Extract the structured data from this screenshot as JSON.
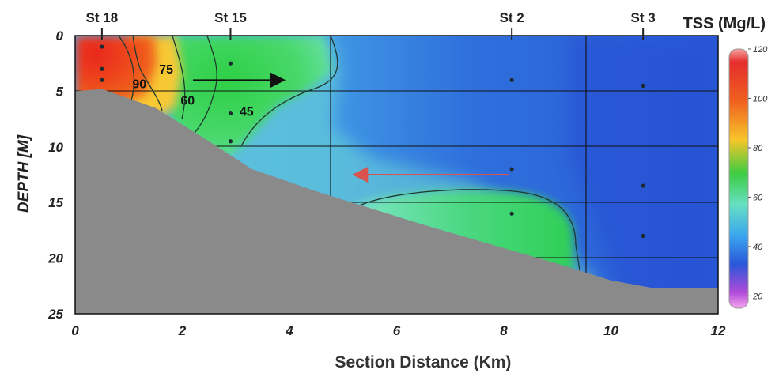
{
  "chart_data": {
    "type": "contour",
    "title": "TSS (Mg/L)",
    "xlabel": "Section Distance (Km)",
    "ylabel": "DEPTH [M]",
    "xlim": [
      0,
      12
    ],
    "ylim": [
      25,
      0
    ],
    "xticks": [
      "0",
      "2",
      "4",
      "6",
      "8",
      "10",
      "12"
    ],
    "xtick_values": [
      0,
      2,
      4,
      6,
      8,
      10,
      12
    ],
    "yticks": [
      "0",
      "5",
      "10",
      "15",
      "20",
      "25"
    ],
    "ytick_values": [
      0,
      5,
      10,
      15,
      20,
      25
    ],
    "grid": true,
    "stations": [
      {
        "label": "St 18",
        "x": 0.5
      },
      {
        "label": "St 15",
        "x": 2.9
      },
      {
        "label": "St 2",
        "x": 8.15
      },
      {
        "label": "St 3",
        "x": 10.6
      }
    ],
    "sample_points": [
      {
        "x": 0.5,
        "depth": 1
      },
      {
        "x": 0.5,
        "depth": 3
      },
      {
        "x": 0.5,
        "depth": 4
      },
      {
        "x": 2.9,
        "depth": 2.5
      },
      {
        "x": 2.9,
        "depth": 7
      },
      {
        "x": 2.9,
        "depth": 9.5
      },
      {
        "x": 8.15,
        "depth": 4
      },
      {
        "x": 8.15,
        "depth": 12
      },
      {
        "x": 8.15,
        "depth": 16
      },
      {
        "x": 10.6,
        "depth": 4.5
      },
      {
        "x": 10.6,
        "depth": 13.5
      },
      {
        "x": 10.6,
        "depth": 18
      }
    ],
    "contour_labels": [
      {
        "text": "75",
        "x": 1.7,
        "depth": 3
      },
      {
        "text": "90",
        "x": 1.2,
        "depth": 4.3
      },
      {
        "text": "60",
        "x": 2.1,
        "depth": 5.8
      },
      {
        "text": "45",
        "x": 3.2,
        "depth": 6.8
      }
    ],
    "bathymetry": [
      {
        "x": 0.0,
        "depth": 5.0
      },
      {
        "x": 0.5,
        "depth": 4.8
      },
      {
        "x": 1.5,
        "depth": 6.5
      },
      {
        "x": 2.5,
        "depth": 9.5
      },
      {
        "x": 3.3,
        "depth": 12.0
      },
      {
        "x": 4.5,
        "depth": 14.0
      },
      {
        "x": 6.5,
        "depth": 17.0
      },
      {
        "x": 9.0,
        "depth": 20.5
      },
      {
        "x": 10.0,
        "depth": 22.0
      },
      {
        "x": 10.8,
        "depth": 22.7
      },
      {
        "x": 12.0,
        "depth": 22.7
      }
    ],
    "arrows": [
      {
        "color": "#111111",
        "from": {
          "x": 2.2,
          "depth": 4
        },
        "to": {
          "x": 3.9,
          "depth": 4
        }
      },
      {
        "color": "#d9534f",
        "from": {
          "x": 8.1,
          "depth": 12.5
        },
        "to": {
          "x": 5.2,
          "depth": 12.5
        }
      }
    ],
    "colorbar": {
      "ticks": [
        "20",
        "40",
        "60",
        "80",
        "100",
        "120"
      ],
      "range": [
        15,
        120
      ]
    }
  }
}
